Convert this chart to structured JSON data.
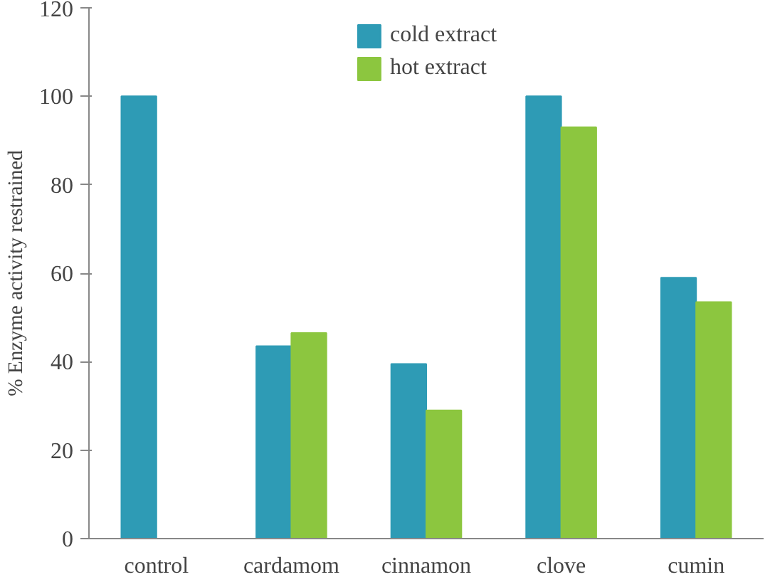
{
  "chart_data": {
    "type": "bar",
    "ylabel": "% Enzyme activity restrained",
    "categories": [
      "control",
      "cardamom",
      "cinnamon",
      "clove",
      "cumin"
    ],
    "series": [
      {
        "name": "cold extract",
        "color": "#2e9bb5",
        "values": [
          100,
          43.5,
          39.5,
          100,
          59
        ]
      },
      {
        "name": "hot extract",
        "color": "#8cc63f",
        "values": [
          null,
          46.5,
          29,
          93,
          53.5
        ]
      }
    ],
    "ylim": [
      0,
      120
    ],
    "yticks": [
      0,
      20,
      40,
      60,
      80,
      100,
      120
    ],
    "grid": false,
    "legend": "top"
  }
}
